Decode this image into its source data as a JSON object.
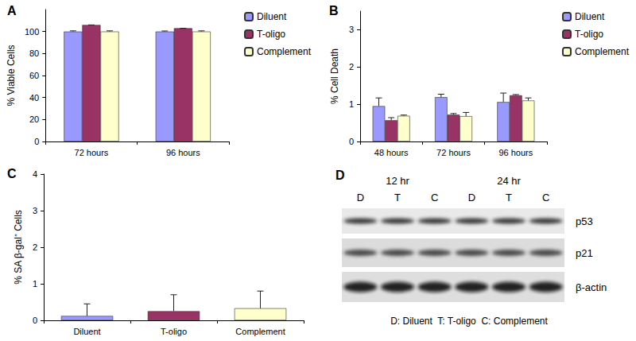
{
  "chart_data": [
    {
      "type": "bar",
      "title": "A",
      "y_label": "% Viable Cells",
      "categories": [
        "72 hours",
        "96 hours"
      ],
      "series": [
        {
          "name": "Diluent",
          "color": "#9999ff",
          "values": [
            100,
            100
          ],
          "errors": [
            0.6,
            0.5
          ]
        },
        {
          "name": "T-oligo",
          "color": "#993366",
          "values": [
            106,
            103
          ],
          "errors": [
            0,
            0
          ]
        },
        {
          "name": "Complement",
          "color": "#ffffcc",
          "values": [
            100,
            100
          ],
          "errors": [
            0.6,
            0.6
          ]
        }
      ],
      "ylim": [
        0,
        120
      ],
      "yticks": [
        0,
        20,
        40,
        60,
        80,
        100
      ],
      "grid": false,
      "legend": "right"
    },
    {
      "type": "bar",
      "title": "B",
      "y_label": "% Cell Death",
      "categories": [
        "48 hours",
        "72 hours",
        "96 hours"
      ],
      "series": [
        {
          "name": "Diluent",
          "color": "#9999ff",
          "values": [
            0.95,
            1.19,
            1.06
          ],
          "errors": [
            0.22,
            0.08,
            0.24
          ]
        },
        {
          "name": "T-oligo",
          "color": "#993366",
          "values": [
            0.57,
            0.72,
            1.24
          ],
          "errors": [
            0.07,
            0.03,
            0.02
          ]
        },
        {
          "name": "Complement",
          "color": "#ffffcc",
          "values": [
            0.69,
            0.68,
            1.1
          ],
          "errors": [
            0.02,
            0.1,
            0.07
          ]
        }
      ],
      "ylim": [
        0,
        3.5
      ],
      "yticks": [
        0,
        1,
        2,
        3
      ],
      "grid": false,
      "legend": "right"
    },
    {
      "type": "bar",
      "title": "C",
      "y_label": "% SA β-gal⁺ Cells",
      "categories": [
        "Diluent",
        "T-oligo",
        "Complement"
      ],
      "values": [
        0.12,
        0.25,
        0.33
      ],
      "errors": [
        0.33,
        0.45,
        0.47
      ],
      "colors": [
        "#9999ff",
        "#993366",
        "#ffffcc"
      ],
      "ylim": [
        0,
        4
      ],
      "yticks": [
        0,
        1,
        2,
        3,
        4
      ],
      "grid": false
    }
  ],
  "blot": {
    "title": "D",
    "time_points": [
      "12 hr",
      "24 hr"
    ],
    "lanes": [
      "D",
      "T",
      "C",
      "D",
      "T",
      "C"
    ],
    "bands": [
      "p53",
      "p21",
      "β-actin"
    ],
    "key": "D: Diluent  T: T-oligo  C: Complement"
  }
}
